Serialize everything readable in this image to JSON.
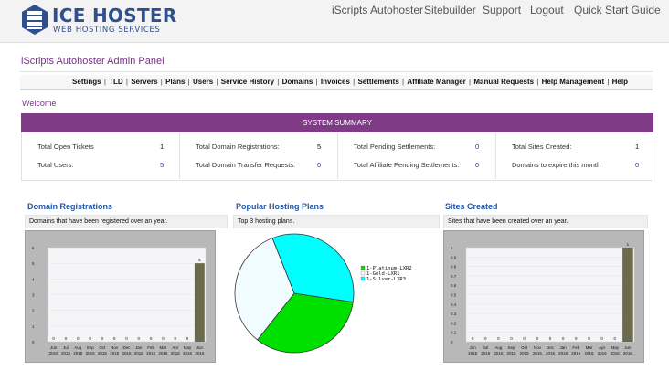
{
  "brand": {
    "name": "ICE HOSTER",
    "tagline": "WEB HOSTING SERVICES",
    "logo_icon": "server-stack-icon",
    "color": "#2f4f8e"
  },
  "top_nav": [
    "iScripts Autohoster",
    "Sitebuilder",
    "Support",
    "Logout",
    "Quick Start Guide"
  ],
  "panel_title": "iScripts Autohoster Admin Panel",
  "admin_menu": [
    "Settings",
    "TLD",
    "Servers",
    "Plans",
    "Users",
    "Service History",
    "Domains",
    "Invoices",
    "Settlements",
    "Affiliate Manager",
    "Manual Requests",
    "Help Management",
    "Help"
  ],
  "welcome": "Welcome",
  "summary": {
    "header": "SYSTEM SUMMARY",
    "accent": "#7f3b86",
    "columns": [
      [
        {
          "label": "Total Open Tickets",
          "value": "1"
        },
        {
          "label": "Total Users:",
          "value": "5"
        }
      ],
      [
        {
          "label": "Total Domain Registrations:",
          "value": "5"
        },
        {
          "label": "Total Domain Transfer Requests:",
          "value": "0"
        }
      ],
      [
        {
          "label": "Total Pending Settlements:",
          "value": "0"
        },
        {
          "label": "Total Affiliate Pending Settlements:",
          "value": "0"
        }
      ],
      [
        {
          "label": "Total Sites Created:",
          "value": "1"
        },
        {
          "label": "Domains to expire this month",
          "value": "0"
        }
      ]
    ]
  },
  "widgets": {
    "domains": {
      "title": "Domain Registrations",
      "description": "Domains that have been registered over an year."
    },
    "plans": {
      "title": "Popular Hosting Plans",
      "description": "Top 3 hosting plans."
    },
    "sites": {
      "title": "Sites Created",
      "description": "Sites that have been created over an year."
    }
  },
  "chart_data": [
    {
      "type": "bar",
      "categories": [
        "Jun 2015",
        "Jul 2015",
        "Aug 2015",
        "Sep 2015",
        "Oct 2015",
        "Nov 2015",
        "Dec 2015",
        "Jan 2016",
        "Feb 2016",
        "Mar 2016",
        "Apr 2016",
        "May 2016",
        "Jun 2016"
      ],
      "values": [
        0,
        0,
        0,
        0,
        0,
        0,
        0,
        0,
        0,
        0,
        0,
        0,
        5
      ],
      "yticks": [
        "0",
        "1",
        "2",
        "3",
        "4",
        "5",
        "6"
      ],
      "ylim": [
        0,
        6
      ],
      "bar_color": "#6b6b4b"
    },
    {
      "type": "pie",
      "slices": [
        {
          "label": "1-Platinum-LXR2",
          "value": 1,
          "color": "#00e000"
        },
        {
          "label": "1-Gold-LXR1",
          "value": 1,
          "color": "#f0fcff"
        },
        {
          "label": "1-Silver-LXR3",
          "value": 1,
          "color": "#00ffff"
        }
      ]
    },
    {
      "type": "bar",
      "categories": [
        "Jun 2015",
        "Jul 2015",
        "Aug 2015",
        "Sep 2015",
        "Oct 2015",
        "Nov 2015",
        "Dec 2015",
        "Jan 2016",
        "Feb 2016",
        "Mar 2016",
        "Apr 2016",
        "May 2016",
        "Jun 2016"
      ],
      "values": [
        0,
        0,
        0,
        0,
        0,
        0,
        0,
        0,
        0,
        0,
        0,
        0,
        1
      ],
      "yticks": [
        "0",
        "0.1",
        "0.2",
        "0.3",
        "0.4",
        "0.5",
        "0.6",
        "0.7",
        "0.8",
        "0.9",
        "1"
      ],
      "ylim": [
        0,
        1
      ],
      "bar_color": "#6b6b4b"
    }
  ]
}
